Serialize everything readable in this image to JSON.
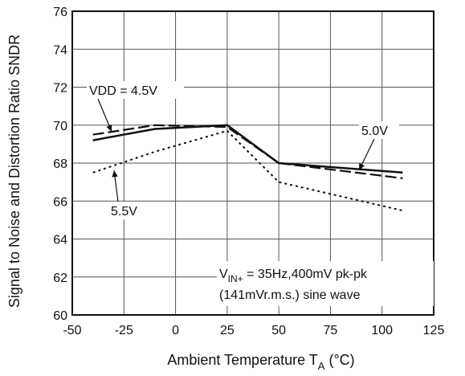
{
  "chart_data": {
    "type": "line",
    "title": "",
    "xlabel_main": "Ambient Temperature  T",
    "xlabel_sub": "A",
    "xlabel_unit": " (°C)",
    "ylabel": "Signal to Noise and Distortion Ratio SNDR",
    "xlim": [
      -50,
      125
    ],
    "ylim": [
      60,
      76
    ],
    "xticks": [
      -50,
      -25,
      0,
      25,
      50,
      75,
      100,
      125
    ],
    "yticks": [
      60,
      62,
      64,
      66,
      68,
      70,
      72,
      74,
      76
    ],
    "grid": true,
    "legend": "none",
    "series": [
      {
        "name": "5.0V",
        "style": "solid",
        "color": "#111111",
        "x": [
          -40,
          -10,
          25,
          50,
          110
        ],
        "y": [
          69.2,
          69.8,
          70.0,
          68.0,
          67.5
        ]
      },
      {
        "name": "VDD = 4.5V",
        "style": "dashed",
        "color": "#111111",
        "x": [
          -40,
          -10,
          25,
          50,
          110
        ],
        "y": [
          69.5,
          70.0,
          69.9,
          68.0,
          67.2
        ]
      },
      {
        "name": "5.5V",
        "style": "dotted",
        "color": "#111111",
        "x": [
          -40,
          -10,
          25,
          50,
          110
        ],
        "y": [
          67.5,
          68.6,
          69.7,
          67.0,
          65.5
        ]
      }
    ],
    "annotations": {
      "vdd45": "VDD = 4.5V",
      "v50": "5.0V",
      "v55": "5.5V",
      "vin_v": "V",
      "vin_sub": "IN+",
      "vin_rest": " = 35Hz,400mV pk-pk",
      "vin_line2": "(141mVr.m.s.) sine wave"
    }
  }
}
